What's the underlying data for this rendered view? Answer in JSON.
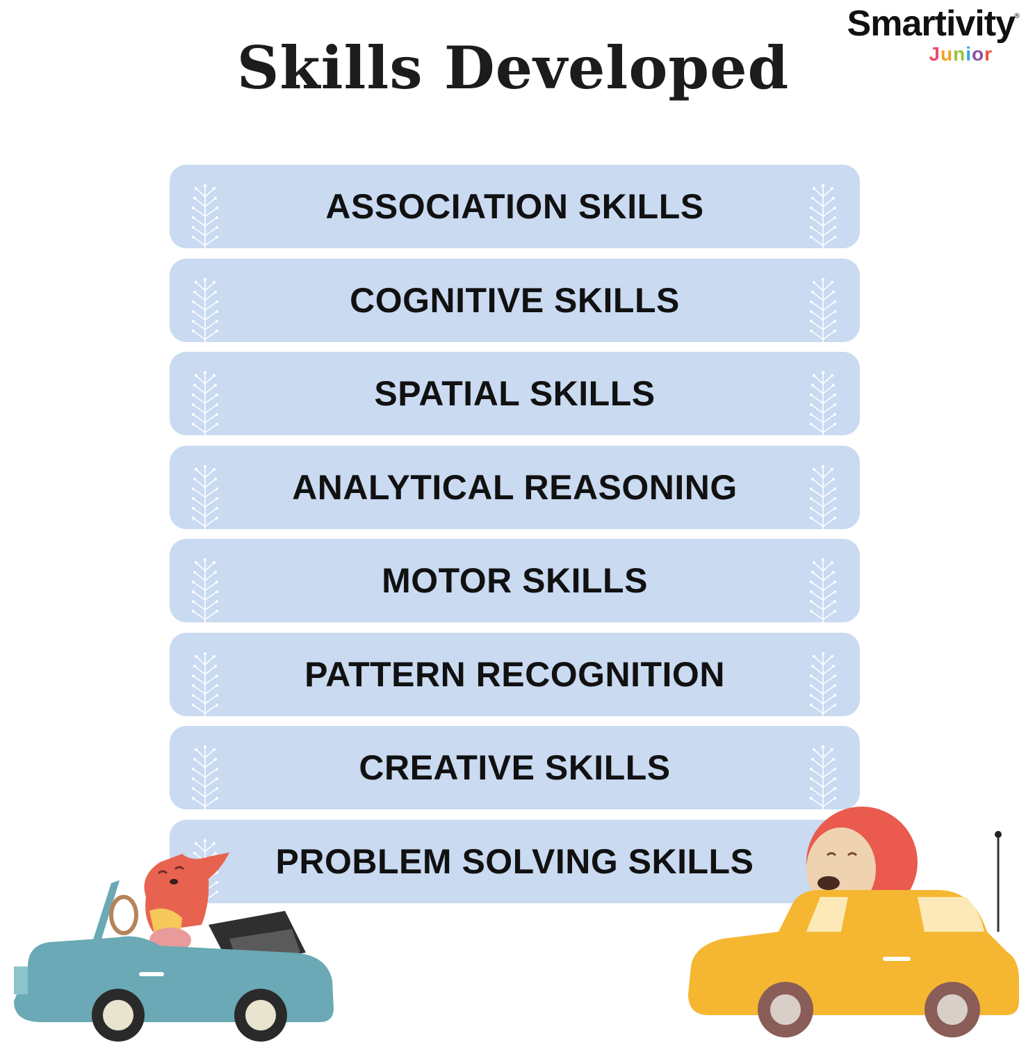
{
  "header": {
    "title": "Skills Developed"
  },
  "brand": {
    "name": "Smartivity",
    "registered": "®",
    "sub_letters": [
      {
        "char": "J",
        "color": "#e84c6c"
      },
      {
        "char": "u",
        "color": "#f0a21e"
      },
      {
        "char": "n",
        "color": "#9bc13b"
      },
      {
        "char": "i",
        "color": "#2ea7d9"
      },
      {
        "char": "o",
        "color": "#8a4ea3"
      },
      {
        "char": "r",
        "color": "#e8543c"
      }
    ]
  },
  "skills": [
    {
      "label": "ASSOCIATION SKILLS"
    },
    {
      "label": "COGNITIVE SKILLS"
    },
    {
      "label": "SPATIAL SKILLS"
    },
    {
      "label": "ANALYTICAL REASONING"
    },
    {
      "label": "MOTOR SKILLS"
    },
    {
      "label": "PATTERN RECOGNITION"
    },
    {
      "label": "CREATIVE SKILLS"
    },
    {
      "label": "PROBLEM SOLVING SKILLS"
    }
  ],
  "colors": {
    "pill_background": "#c9daf1",
    "text": "#111111",
    "sprig": "#ffffff",
    "left_car": "#6aa9b5",
    "right_car": "#f5b731",
    "fox": "#e8634f",
    "lion_mane": "#ea5a4e"
  },
  "illustrations": [
    "fox-in-convertible-illustration",
    "lion-in-car-illustration"
  ]
}
